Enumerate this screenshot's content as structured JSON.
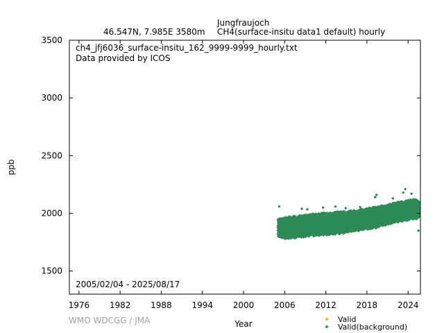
{
  "header": {
    "station": "Jungfraujoch",
    "location": "46.547N, 7.985E 3580m",
    "dataset": "CH4(surface-insitu data1 default) hourly"
  },
  "credit": "WMO WDCGG / JMA",
  "chart_data": {
    "type": "scatter",
    "file_label": "ch4_jfj6036_surface-insitu_162_9999-9999_hourly.txt",
    "provider_label": "Data provided by ICOS",
    "date_range_label": "2005/02/04 - 2025/08/17",
    "xlabel": "Year",
    "ylabel": "ppb",
    "xlim": [
      1974.6,
      2025.8
    ],
    "ylim": [
      1300,
      3500
    ],
    "x_ticks": [
      1976,
      1982,
      1988,
      1994,
      2000,
      2006,
      2012,
      2018,
      2024
    ],
    "y_ticks": [
      1500,
      2000,
      2500,
      3000,
      3500
    ],
    "colors": {
      "valid": "#e8b800",
      "background": "#2e8b57"
    },
    "legend": [
      {
        "name": "Valid",
        "color": "#e8b800"
      },
      {
        "name": "Valid(background)",
        "color": "#2e8b57"
      }
    ],
    "series": [
      {
        "name": "Valid(background)",
        "x": [
          2005.1,
          2005.5,
          2006.0,
          2006.5,
          2007.0,
          2007.5,
          2008.0,
          2008.5,
          2009.0,
          2009.5,
          2010.0,
          2010.5,
          2011.0,
          2011.5,
          2012.0,
          2012.5,
          2013.0,
          2013.5,
          2014.0,
          2014.5,
          2015.0,
          2015.5,
          2016.0,
          2016.5,
          2017.0,
          2017.5,
          2018.0,
          2018.5,
          2019.0,
          2019.5,
          2020.0,
          2020.5,
          2021.0,
          2021.5,
          2022.0,
          2022.5,
          2023.0,
          2023.5,
          2024.0,
          2024.5,
          2025.0,
          2025.6
        ],
        "low": [
          1800,
          1790,
          1785,
          1780,
          1785,
          1790,
          1795,
          1795,
          1800,
          1805,
          1805,
          1810,
          1810,
          1815,
          1815,
          1820,
          1820,
          1825,
          1825,
          1830,
          1835,
          1840,
          1845,
          1850,
          1855,
          1860,
          1865,
          1870,
          1875,
          1880,
          1890,
          1895,
          1905,
          1910,
          1920,
          1925,
          1935,
          1940,
          1945,
          1950,
          1955,
          1960
        ],
        "high": [
          1950,
          1960,
          1960,
          1965,
          1970,
          1975,
          1975,
          1980,
          1985,
          1985,
          1990,
          1995,
          1995,
          2000,
          2000,
          2005,
          2005,
          2010,
          2010,
          2015,
          2015,
          2020,
          2025,
          2025,
          2030,
          2035,
          2040,
          2045,
          2050,
          2055,
          2060,
          2065,
          2075,
          2080,
          2090,
          2095,
          2100,
          2105,
          2110,
          2115,
          2120,
          2100
        ]
      }
    ],
    "spikes": [
      {
        "x": 2005.2,
        "y": 2060
      },
      {
        "x": 2008.5,
        "y": 2040
      },
      {
        "x": 2009.3,
        "y": 2035
      },
      {
        "x": 2011.6,
        "y": 2050
      },
      {
        "x": 2013.4,
        "y": 2060
      },
      {
        "x": 2014.9,
        "y": 2045
      },
      {
        "x": 2017.0,
        "y": 2055
      },
      {
        "x": 2019.2,
        "y": 2140
      },
      {
        "x": 2019.4,
        "y": 2160
      },
      {
        "x": 2021.8,
        "y": 2130
      },
      {
        "x": 2023.3,
        "y": 2180
      },
      {
        "x": 2023.6,
        "y": 2210
      },
      {
        "x": 2024.5,
        "y": 2170
      },
      {
        "x": 2025.5,
        "y": 1850
      }
    ]
  }
}
